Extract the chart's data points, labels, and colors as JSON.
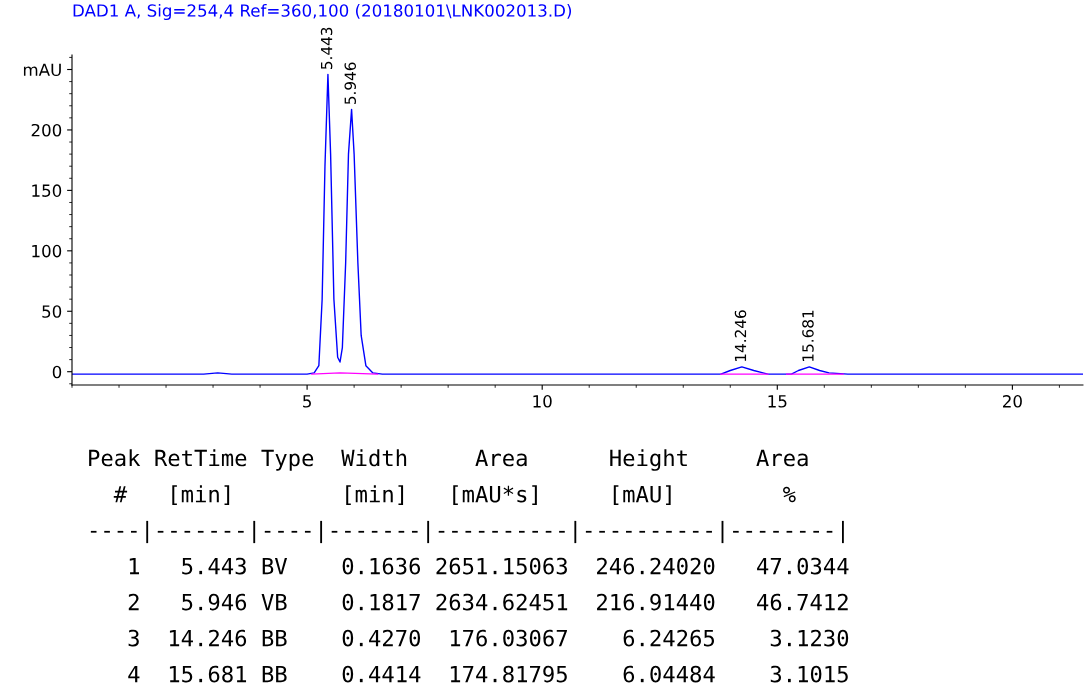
{
  "chart_data": {
    "type": "line",
    "title": "DAD1 A, Sig=254,4 Ref=360,100 (20180101\\LNK002013.D)",
    "series": [
      {
        "color": "#0000ff",
        "x": [
          0.0,
          1.0,
          2.0,
          2.8,
          3.1,
          3.4,
          4.0,
          5.0,
          5.15,
          5.25,
          5.32,
          5.38,
          5.443,
          5.5,
          5.57,
          5.65,
          5.7,
          5.75,
          5.82,
          5.88,
          5.946,
          6.0,
          6.08,
          6.15,
          6.25,
          6.4,
          6.6,
          8.0,
          10.0,
          12.0,
          13.8,
          14.0,
          14.246,
          14.5,
          14.8,
          15.3,
          15.45,
          15.681,
          15.9,
          16.1,
          16.5,
          18.0,
          20.0,
          21.5
        ],
        "values": [
          -2,
          -2,
          -2,
          -2,
          -1,
          -2,
          -2,
          -2,
          -1,
          5,
          60,
          170,
          246,
          180,
          60,
          12,
          8,
          20,
          90,
          180,
          217,
          180,
          90,
          30,
          5,
          -1,
          -2,
          -2,
          -2,
          -2,
          -2,
          1,
          4,
          1,
          -2,
          -2,
          1,
          4,
          1,
          -1,
          -2,
          -2,
          -2,
          -2
        ]
      },
      {
        "color": "#ff00ff",
        "x": [
          5.1,
          5.7,
          6.5,
          10.0,
          13.8,
          14.8,
          15.0,
          15.2,
          16.4
        ],
        "values": [
          -2,
          -1,
          -2,
          null,
          -2,
          -2,
          null,
          -2,
          -2
        ]
      }
    ],
    "xlim": [
      0,
      21.5
    ],
    "ylim": [
      -11,
      262
    ],
    "xticks": [
      5,
      10,
      15,
      20
    ],
    "yticks": [
      0,
      50,
      100,
      150,
      200,
      {
        "value": 250,
        "label": "mAU"
      }
    ],
    "grid": false,
    "legend": false,
    "annotations": [
      {
        "text": "5.443",
        "x": 5.443,
        "y": 246
      },
      {
        "text": "5.946",
        "x": 5.946,
        "y": 217
      },
      {
        "text": "14.246",
        "x": 14.246,
        "y": 4
      },
      {
        "text": "15.681",
        "x": 15.681,
        "y": 4
      },
      "Peak RetTime Type  Width     Area      Height     Area",
      "  #   [min]        [min]   [mAU*s]     [mAU]        %",
      "----|-------|----|-------|----------|----------|--------|",
      "   1   5.443 BV    0.1636 2651.15063  246.24020   47.0344",
      "   2   5.946 VB    0.1817 2634.62451  216.91440   46.7412",
      "   3  14.246 BB    0.4270  176.03067    6.24265    3.1230",
      "   4  15.681 BB    0.4414  174.81795    6.04484    3.1015"
    ]
  }
}
